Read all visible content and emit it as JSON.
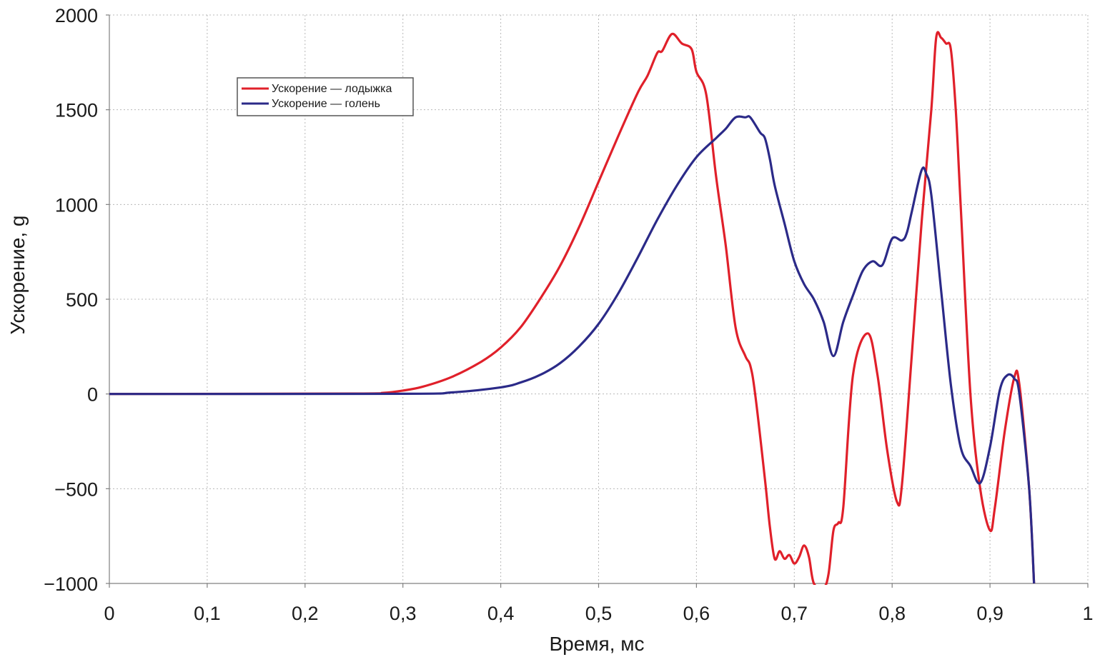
{
  "chart_data": {
    "type": "line",
    "title": "",
    "xlabel": "Время, мс",
    "ylabel": "Ускорение, g",
    "xlim": [
      0,
      1
    ],
    "ylim": [
      -1000,
      2000
    ],
    "x_ticks": [
      0,
      0.1,
      0.2,
      0.3,
      0.4,
      0.5,
      0.6,
      0.7,
      0.8,
      0.9,
      1
    ],
    "x_tick_labels": [
      "0",
      "0,1",
      "0,2",
      "0,3",
      "0,4",
      "0,5",
      "0,6",
      "0,7",
      "0,8",
      "0,9",
      "1"
    ],
    "y_ticks": [
      2000,
      1500,
      1000,
      500,
      0,
      -500,
      -1000
    ],
    "y_tick_labels": [
      "2000",
      "1500",
      "1000",
      "500",
      "0",
      "−500",
      "−1000"
    ],
    "grid": true,
    "legend_position": "top-left",
    "series": [
      {
        "name": "Ускорение — лодыжка",
        "color": "#e0202a",
        "points": [
          [
            0,
            0
          ],
          [
            0.25,
            2
          ],
          [
            0.28,
            6
          ],
          [
            0.3,
            18
          ],
          [
            0.32,
            38
          ],
          [
            0.35,
            90
          ],
          [
            0.38,
            170
          ],
          [
            0.4,
            245
          ],
          [
            0.42,
            350
          ],
          [
            0.44,
            500
          ],
          [
            0.46,
            670
          ],
          [
            0.48,
            880
          ],
          [
            0.5,
            1120
          ],
          [
            0.52,
            1360
          ],
          [
            0.54,
            1590
          ],
          [
            0.55,
            1680
          ],
          [
            0.56,
            1800
          ],
          [
            0.565,
            1810
          ],
          [
            0.575,
            1900
          ],
          [
            0.585,
            1850
          ],
          [
            0.595,
            1820
          ],
          [
            0.6,
            1700
          ],
          [
            0.61,
            1580
          ],
          [
            0.62,
            1150
          ],
          [
            0.63,
            780
          ],
          [
            0.64,
            350
          ],
          [
            0.65,
            200
          ],
          [
            0.655,
            150
          ],
          [
            0.66,
            0
          ],
          [
            0.67,
            -450
          ],
          [
            0.675,
            -700
          ],
          [
            0.68,
            -870
          ],
          [
            0.685,
            -830
          ],
          [
            0.69,
            -870
          ],
          [
            0.695,
            -850
          ],
          [
            0.7,
            -895
          ],
          [
            0.705,
            -860
          ],
          [
            0.71,
            -800
          ],
          [
            0.715,
            -860
          ],
          [
            0.72,
            -1000
          ],
          [
            0.73,
            -1020
          ],
          [
            0.735,
            -950
          ],
          [
            0.74,
            -720
          ],
          [
            0.745,
            -680
          ],
          [
            0.75,
            -600
          ],
          [
            0.76,
            100
          ],
          [
            0.775,
            320
          ],
          [
            0.785,
            100
          ],
          [
            0.795,
            -300
          ],
          [
            0.805,
            -570
          ],
          [
            0.81,
            -480
          ],
          [
            0.82,
            200
          ],
          [
            0.83,
            900
          ],
          [
            0.84,
            1500
          ],
          [
            0.845,
            1880
          ],
          [
            0.85,
            1880
          ],
          [
            0.855,
            1850
          ],
          [
            0.86,
            1820
          ],
          [
            0.865,
            1500
          ],
          [
            0.87,
            1000
          ],
          [
            0.88,
            0
          ],
          [
            0.89,
            -500
          ],
          [
            0.9,
            -720
          ],
          [
            0.905,
            -600
          ],
          [
            0.915,
            -200
          ],
          [
            0.925,
            90
          ],
          [
            0.93,
            50
          ],
          [
            0.94,
            -500
          ],
          [
            0.945,
            -1000
          ]
        ]
      },
      {
        "name": "Ускорение — голень",
        "color": "#2b2a88",
        "points": [
          [
            0,
            0
          ],
          [
            0.3,
            1
          ],
          [
            0.35,
            8
          ],
          [
            0.4,
            35
          ],
          [
            0.42,
            60
          ],
          [
            0.44,
            100
          ],
          [
            0.46,
            160
          ],
          [
            0.48,
            250
          ],
          [
            0.5,
            370
          ],
          [
            0.52,
            530
          ],
          [
            0.54,
            720
          ],
          [
            0.56,
            920
          ],
          [
            0.58,
            1100
          ],
          [
            0.6,
            1250
          ],
          [
            0.62,
            1350
          ],
          [
            0.63,
            1400
          ],
          [
            0.64,
            1460
          ],
          [
            0.65,
            1460
          ],
          [
            0.655,
            1460
          ],
          [
            0.665,
            1380
          ],
          [
            0.67,
            1350
          ],
          [
            0.675,
            1240
          ],
          [
            0.68,
            1100
          ],
          [
            0.69,
            900
          ],
          [
            0.7,
            700
          ],
          [
            0.71,
            580
          ],
          [
            0.72,
            500
          ],
          [
            0.73,
            380
          ],
          [
            0.74,
            200
          ],
          [
            0.75,
            380
          ],
          [
            0.76,
            520
          ],
          [
            0.77,
            650
          ],
          [
            0.78,
            700
          ],
          [
            0.79,
            680
          ],
          [
            0.8,
            820
          ],
          [
            0.81,
            810
          ],
          [
            0.815,
            850
          ],
          [
            0.82,
            960
          ],
          [
            0.83,
            1180
          ],
          [
            0.835,
            1160
          ],
          [
            0.84,
            1050
          ],
          [
            0.85,
            550
          ],
          [
            0.86,
            50
          ],
          [
            0.87,
            -280
          ],
          [
            0.88,
            -380
          ],
          [
            0.89,
            -470
          ],
          [
            0.9,
            -280
          ],
          [
            0.91,
            20
          ],
          [
            0.918,
            100
          ],
          [
            0.925,
            80
          ],
          [
            0.93,
            0
          ],
          [
            0.94,
            -500
          ],
          [
            0.945,
            -1000
          ]
        ]
      }
    ]
  }
}
